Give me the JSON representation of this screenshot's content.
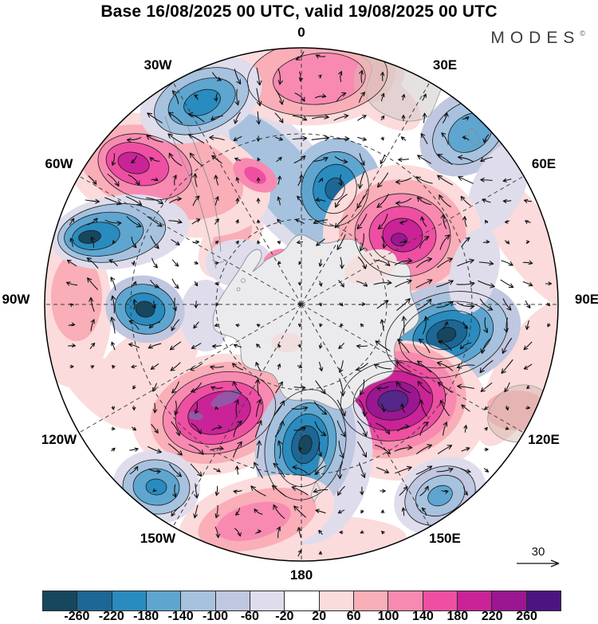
{
  "title": "Base 16/08/2025 00 UTC, valid 19/08/2025 00 UTC",
  "logo": {
    "name": "MODES",
    "mark": "©"
  },
  "map": {
    "longitude_labels": [
      "0",
      "30E",
      "60E",
      "90E",
      "120E",
      "150E",
      "180",
      "150W",
      "120W",
      "90W",
      "60W",
      "30W"
    ],
    "reference_vector_label": "30"
  },
  "colorbar": {
    "tick_labels": [
      "-260",
      "-220",
      "-180",
      "-140",
      "-100",
      "-60",
      "-20",
      "20",
      "60",
      "100",
      "140",
      "180",
      "220",
      "260"
    ]
  },
  "chart_data": {
    "type": "heatmap",
    "subtype": "south-polar-stereographic-filled-contour-map-with-wind-vectors",
    "title": "Base 16/08/2025 00 UTC, valid 19/08/2025 00 UTC",
    "base_time": "16/08/2025 00 UTC",
    "valid_time": "19/08/2025 00 UTC",
    "meridian_labels_deg": [
      0,
      30,
      60,
      90,
      120,
      150,
      180,
      -150,
      -120,
      -90,
      -60,
      -30
    ],
    "latitude_circles": 2,
    "contour_levels": [
      -260,
      -220,
      -180,
      -140,
      -100,
      -60,
      -20,
      20,
      60,
      100,
      140,
      180,
      220,
      260
    ],
    "fill_colors": [
      "#16475f",
      "#1d6796",
      "#2a8bbe",
      "#5ea6d0",
      "#a6c2de",
      "#c0c7e0",
      "#dfdcec",
      "#ffffff",
      "#fbdbdb",
      "#f9aeb8",
      "#f88ab1",
      "#ee4fa2",
      "#ca2397",
      "#9a1791",
      "#4c1480"
    ],
    "wind_reference_vector": 30,
    "anomaly_centers": [
      {
        "approx_lon": "0",
        "sign": "positive",
        "peak_band": "100 to 140"
      },
      {
        "approx_lon": "25W",
        "sign": "negative",
        "peak_band": "-220 to -180"
      },
      {
        "approx_lon": "50W",
        "sign": "positive",
        "peak_band": "180 to 220"
      },
      {
        "approx_lon": "18E",
        "sign": "negative",
        "peak_band": "-260 to -220"
      },
      {
        "approx_lon": "44E",
        "sign": "negative",
        "peak_band": "-180 to -140"
      },
      {
        "approx_lon": "70W",
        "sign": "negative",
        "peak_band": "below -260"
      },
      {
        "approx_lon": "55E",
        "sign": "positive",
        "peak_band": "220 to 260"
      },
      {
        "approx_lon": "90W",
        "sign": "positive",
        "peak_band": "60 to 100"
      },
      {
        "approx_lon": "92W",
        "sign": "negative",
        "peak_band": "below -260"
      },
      {
        "approx_lon": "102E",
        "sign": "negative",
        "peak_band": "below -260"
      },
      {
        "approx_lon": "144W",
        "sign": "positive",
        "peak_band": "220 to 260"
      },
      {
        "approx_lon": "137E",
        "sign": "positive",
        "peak_band": "above 260"
      },
      {
        "approx_lon": "180",
        "sign": "negative",
        "peak_band": "below -260"
      },
      {
        "approx_lon": "142W",
        "sign": "negative",
        "peak_band": "-220 to -180"
      },
      {
        "approx_lon": "145E",
        "sign": "negative",
        "peak_band": "-180 to -140"
      },
      {
        "approx_lon": "167W",
        "sign": "positive",
        "peak_band": "100 to 140"
      }
    ]
  }
}
